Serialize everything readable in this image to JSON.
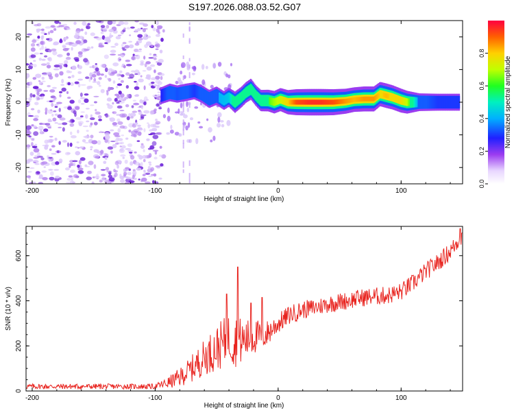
{
  "title": "S197.2026.088.03.52.G07",
  "colors": {
    "snr_line": "#e8231e",
    "axis": "#000000",
    "background": "#ffffff",
    "scatter_low": "#b889f0",
    "scatter_high": "#6a1fd8"
  },
  "chart_data": [
    {
      "type": "heatmap",
      "name": "spectrogram",
      "xlabel": "Height of straight line (km)",
      "ylabel": "Frequency (Hz)",
      "xlim": [
        -205,
        150
      ],
      "ylim": [
        -25,
        25
      ],
      "x_ticks": [
        -200,
        -100,
        0,
        100
      ],
      "x_tick_labels": [
        "-200",
        "-100",
        "0",
        "100"
      ],
      "y_ticks": [
        -20,
        -10,
        0,
        10,
        20
      ],
      "y_tick_labels": [
        "-20",
        "-10",
        "0",
        "10",
        "20"
      ],
      "colorbar": {
        "label": "Normalized spectral amplitude",
        "range": [
          0,
          1
        ],
        "ticks": [
          0,
          0.2,
          0.4,
          0.6,
          0.8
        ],
        "tick_labels": [
          "0.0",
          "0.2",
          "0.4",
          "0.6",
          "0.8"
        ]
      },
      "ridge": [
        {
          "x": -95,
          "f": 2.0,
          "a": 0.28
        },
        {
          "x": -88,
          "f": 3.0,
          "a": 0.35
        },
        {
          "x": -82,
          "f": 2.5,
          "a": 0.32
        },
        {
          "x": -75,
          "f": 3.0,
          "a": 0.34
        },
        {
          "x": -68,
          "f": 3.5,
          "a": 0.3
        },
        {
          "x": -62,
          "f": 2.5,
          "a": 0.34
        },
        {
          "x": -56,
          "f": 1.0,
          "a": 0.38
        },
        {
          "x": -50,
          "f": 2.0,
          "a": 0.4
        },
        {
          "x": -44,
          "f": 0.5,
          "a": 0.42
        },
        {
          "x": -40,
          "f": 1.5,
          "a": 0.44
        },
        {
          "x": -35,
          "f": 0.0,
          "a": 0.6
        },
        {
          "x": -30,
          "f": 1.5,
          "a": 0.55
        },
        {
          "x": -26,
          "f": 3.0,
          "a": 0.55
        },
        {
          "x": -22,
          "f": 4.0,
          "a": 0.58
        },
        {
          "x": -18,
          "f": 2.0,
          "a": 0.55
        },
        {
          "x": -14,
          "f": 0.5,
          "a": 0.6
        },
        {
          "x": -8,
          "f": 0.5,
          "a": 0.62
        },
        {
          "x": -3,
          "f": 0.0,
          "a": 0.68
        },
        {
          "x": 2,
          "f": 0.8,
          "a": 0.72
        },
        {
          "x": 8,
          "f": 0.0,
          "a": 0.8
        },
        {
          "x": 15,
          "f": 0.0,
          "a": 0.92
        },
        {
          "x": 25,
          "f": 0.0,
          "a": 0.95
        },
        {
          "x": 35,
          "f": 0.0,
          "a": 0.95
        },
        {
          "x": 45,
          "f": 0.0,
          "a": 0.92
        },
        {
          "x": 55,
          "f": 0.3,
          "a": 0.85
        },
        {
          "x": 62,
          "f": 0.8,
          "a": 0.82
        },
        {
          "x": 70,
          "f": 1.0,
          "a": 0.85
        },
        {
          "x": 78,
          "f": 1.0,
          "a": 0.85
        },
        {
          "x": 83,
          "f": 2.5,
          "a": 0.8
        },
        {
          "x": 88,
          "f": 2.0,
          "a": 0.82
        },
        {
          "x": 93,
          "f": 1.5,
          "a": 0.8
        },
        {
          "x": 100,
          "f": 0.5,
          "a": 0.78
        },
        {
          "x": 105,
          "f": 0.0,
          "a": 0.7
        },
        {
          "x": 115,
          "f": 0.0,
          "a": 0.35
        },
        {
          "x": 130,
          "f": 0.0,
          "a": 0.3
        },
        {
          "x": 148,
          "f": 0.0,
          "a": 0.3
        }
      ]
    },
    {
      "type": "line",
      "name": "snr",
      "xlabel": "Height of straight line (km)",
      "ylabel": "SNR (10 * v/v)",
      "xlim": [
        -205,
        150
      ],
      "ylim": [
        0,
        730
      ],
      "x_ticks": [
        -200,
        -100,
        0,
        100
      ],
      "x_tick_labels": [
        "-200",
        "-100",
        "0",
        "100"
      ],
      "y_ticks": [
        0,
        200,
        400,
        600
      ],
      "y_tick_labels": [
        "0",
        "200",
        "400",
        "600"
      ],
      "trend": [
        {
          "x": -205,
          "y": 20
        },
        {
          "x": -100,
          "y": 20
        },
        {
          "x": -90,
          "y": 35
        },
        {
          "x": -80,
          "y": 60
        },
        {
          "x": -70,
          "y": 100
        },
        {
          "x": -60,
          "y": 150
        },
        {
          "x": -50,
          "y": 190
        },
        {
          "x": -40,
          "y": 230
        },
        {
          "x": -30,
          "y": 220
        },
        {
          "x": -20,
          "y": 240
        },
        {
          "x": -10,
          "y": 250
        },
        {
          "x": 0,
          "y": 300
        },
        {
          "x": 10,
          "y": 340
        },
        {
          "x": 20,
          "y": 360
        },
        {
          "x": 30,
          "y": 370
        },
        {
          "x": 40,
          "y": 385
        },
        {
          "x": 50,
          "y": 395
        },
        {
          "x": 60,
          "y": 405
        },
        {
          "x": 70,
          "y": 415
        },
        {
          "x": 80,
          "y": 420
        },
        {
          "x": 90,
          "y": 425
        },
        {
          "x": 100,
          "y": 440
        },
        {
          "x": 110,
          "y": 480
        },
        {
          "x": 120,
          "y": 530
        },
        {
          "x": 130,
          "y": 570
        },
        {
          "x": 140,
          "y": 620
        },
        {
          "x": 150,
          "y": 690
        }
      ],
      "noise": [
        {
          "x": -205,
          "y": 12
        },
        {
          "x": -100,
          "y": 12
        },
        {
          "x": -90,
          "y": 25
        },
        {
          "x": -75,
          "y": 50
        },
        {
          "x": -60,
          "y": 80
        },
        {
          "x": -45,
          "y": 110
        },
        {
          "x": -35,
          "y": 120
        },
        {
          "x": -25,
          "y": 90
        },
        {
          "x": -15,
          "y": 70
        },
        {
          "x": 0,
          "y": 45
        },
        {
          "x": 20,
          "y": 40
        },
        {
          "x": 60,
          "y": 40
        },
        {
          "x": 100,
          "y": 40
        },
        {
          "x": 150,
          "y": 40
        }
      ],
      "spikes": [
        {
          "x": -33,
          "y": 550
        },
        {
          "x": -42,
          "y": 430
        },
        {
          "x": -13,
          "y": 415
        },
        {
          "x": -22,
          "y": 390
        },
        {
          "x": 148,
          "y": 720
        }
      ]
    }
  ]
}
